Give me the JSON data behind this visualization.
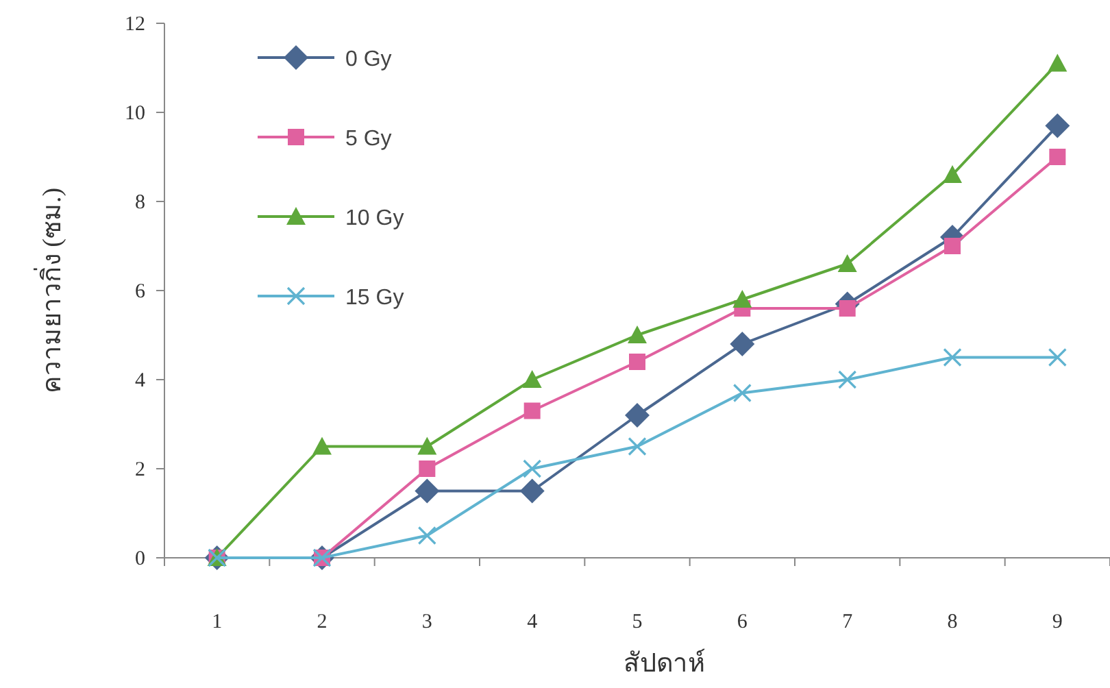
{
  "chart_data": {
    "type": "line",
    "xlabel": "สัปดาห์",
    "ylabel": "ความยาวกิ่ง (ซม.)",
    "categories": [
      "1",
      "2",
      "3",
      "4",
      "5",
      "6",
      "7",
      "8",
      "9"
    ],
    "series": [
      {
        "name": "0 Gy",
        "color": "#4a6790",
        "marker": "diamond",
        "values": [
          0,
          0,
          1.5,
          1.5,
          3.2,
          4.8,
          5.7,
          7.2,
          9.7
        ]
      },
      {
        "name": "5 Gy",
        "color": "#e0619f",
        "marker": "square",
        "values": [
          0,
          0,
          2,
          3.3,
          4.4,
          5.6,
          5.6,
          7,
          9
        ]
      },
      {
        "name": "10 Gy",
        "color": "#5ea83a",
        "marker": "triangle",
        "values": [
          0,
          2.5,
          2.5,
          4,
          5,
          5.8,
          6.6,
          8.6,
          11.1
        ]
      },
      {
        "name": "15 Gy",
        "color": "#5fb3d0",
        "marker": "cross",
        "values": [
          0,
          0,
          0.5,
          2,
          2.5,
          3.7,
          4,
          4.5,
          4.5
        ]
      }
    ],
    "ylim": [
      0,
      12
    ],
    "yticks": [
      0,
      2,
      4,
      6,
      8,
      10,
      12
    ],
    "grid": false,
    "legend": "top left",
    "line_style": "solid"
  }
}
